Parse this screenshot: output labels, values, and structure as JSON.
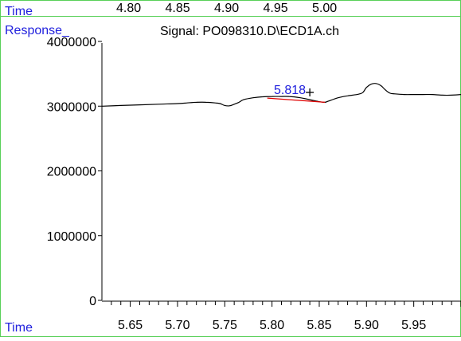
{
  "top_axis": {
    "label": "Time",
    "ticks": [
      "4.80",
      "4.85",
      "4.90",
      "4.95",
      "5.00"
    ],
    "tick_values": [
      4.8,
      4.85,
      4.9,
      4.95,
      5.0
    ]
  },
  "colors": {
    "axis_label": "#1f1fdd",
    "frame": "#58d058",
    "trace": "#000000",
    "baseline": "#e00000",
    "peak_label": "#1f1fdd"
  },
  "chart_data": {
    "type": "line",
    "title": "Signal: PO098310.D\\ECD1A.ch",
    "ylabel": "Response_",
    "xlabel": "Time",
    "xlim": [
      5.62,
      6.0
    ],
    "ylim": [
      0,
      4000000
    ],
    "x_ticks": [
      5.65,
      5.7,
      5.75,
      5.8,
      5.85,
      5.9,
      5.95
    ],
    "x_tick_labels": [
      "5.65",
      "5.70",
      "5.75",
      "5.80",
      "5.85",
      "5.90",
      "5.95"
    ],
    "y_ticks": [
      0,
      1000000,
      2000000,
      3000000,
      4000000
    ],
    "y_tick_labels": [
      "0",
      "1000000",
      "2000000",
      "3000000",
      "4000000"
    ],
    "series": [
      {
        "x": [
          5.62,
          5.64,
          5.66,
          5.68,
          5.7,
          5.71,
          5.72,
          5.73,
          5.74,
          5.745,
          5.75,
          5.755,
          5.76,
          5.765,
          5.77,
          5.78,
          5.79,
          5.8,
          5.81,
          5.818,
          5.83,
          5.84,
          5.85,
          5.856,
          5.86,
          5.87,
          5.88,
          5.89,
          5.896,
          5.9,
          5.905,
          5.91,
          5.915,
          5.92,
          5.925,
          5.93,
          5.94,
          5.95,
          5.96,
          5.97,
          5.98,
          5.99,
          6.0
        ],
        "y": [
          3000000,
          3010000,
          3020000,
          3030000,
          3040000,
          3050000,
          3060000,
          3060000,
          3050000,
          3040000,
          3010000,
          3005000,
          3030000,
          3060000,
          3100000,
          3130000,
          3145000,
          3150000,
          3150000,
          3150000,
          3130000,
          3100000,
          3070000,
          3060000,
          3080000,
          3130000,
          3160000,
          3180000,
          3210000,
          3290000,
          3340000,
          3350000,
          3320000,
          3250000,
          3200000,
          3190000,
          3180000,
          3180000,
          3180000,
          3180000,
          3170000,
          3170000,
          3180000
        ]
      }
    ],
    "peak": {
      "label": "5.818",
      "retention_time": 5.818,
      "baseline": {
        "x": [
          5.795,
          5.856
        ],
        "y": [
          3125000,
          3060000
        ]
      }
    }
  }
}
